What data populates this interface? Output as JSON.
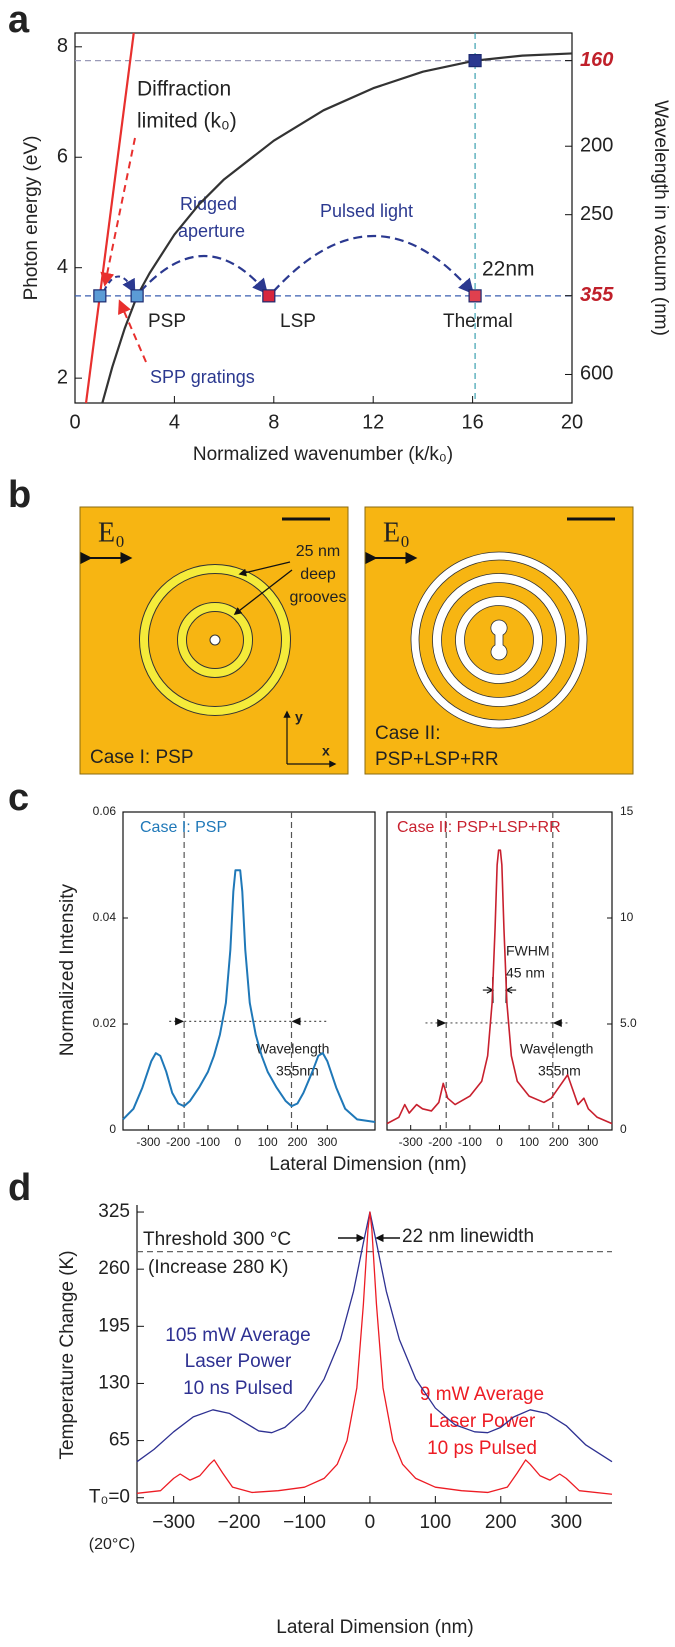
{
  "panel_labels": [
    "a",
    "b",
    "c",
    "d"
  ],
  "chart_data": [
    {
      "type": "line",
      "xlabel": "Normalized wavenumber (k/k₀)",
      "ylabel": "Photon energy (eV)",
      "y2label": "Wavelength in vacuum (nm)",
      "xlim": [
        0,
        20
      ],
      "xticks": [
        0,
        4,
        8,
        12,
        16,
        20
      ],
      "ylim": [
        1.55,
        8.25
      ],
      "yticks": [
        2,
        4,
        6,
        8
      ],
      "y2lim": [
        800,
        150.3
      ],
      "y2scale": "reciprocal",
      "y2ticks": [
        160,
        200,
        250,
        355,
        600
      ],
      "series": [
        {
          "x": [
            0.444,
            2.364
          ],
          "values": [
            1.55,
            8.25
          ],
          "color": "#e8302e"
        },
        {
          "x": [
            1.1,
            1.5,
            2,
            2.5,
            3,
            4,
            5,
            6,
            8,
            10,
            12,
            14,
            16.1,
            18,
            20
          ],
          "values": [
            1.55,
            2.2,
            2.9,
            3.49,
            3.9,
            4.6,
            5.15,
            5.6,
            6.3,
            6.85,
            7.25,
            7.55,
            7.75,
            7.84,
            7.88
          ],
          "color": "#333333"
        }
      ],
      "points": {
        "x": [
          1,
          2.5,
          7.8,
          16.1,
          16.1
        ],
        "values": [
          3.49,
          3.49,
          3.49,
          3.49,
          7.75
        ],
        "colors": [
          "#5b9bd5",
          "#5b9bd5",
          "#d7263d",
          "#e0404e",
          "#2b3990"
        ]
      },
      "hlines": [
        {
          "y": 3.49,
          "color": "#3a5fb0"
        },
        {
          "y": 7.75,
          "color": "#9a9ab8"
        }
      ],
      "vlines": [
        {
          "x": 16.1,
          "color": "#3aa0b0"
        }
      ],
      "annotations": [
        "Diffraction",
        "limited (k₀)",
        "Ridged",
        "aperture",
        "Pulsed light",
        "22nm",
        "PSP",
        "LSP",
        "Thermal",
        "SPP gratings"
      ]
    },
    {
      "type": "line",
      "title": "Case I: PSP",
      "ylabel": "Normalized Intensity",
      "xlim": [
        -385,
        460
      ],
      "xticks": [
        -300,
        -200,
        -100,
        0,
        100,
        200,
        300
      ],
      "ylim": [
        0,
        0.06
      ],
      "yticks": [
        0,
        0.02,
        0.04,
        0.06
      ],
      "series": [
        {
          "x": [
            -385,
            -350,
            -320,
            -290,
            -275,
            -260,
            -240,
            -220,
            -200,
            -180,
            -160,
            -130,
            -100,
            -80,
            -60,
            -40,
            -25,
            -15,
            -8,
            8,
            15,
            25,
            40,
            60,
            80,
            100,
            130,
            160,
            180,
            200,
            220,
            250,
            270,
            285,
            300,
            330,
            360,
            400,
            460
          ],
          "values": [
            0.002,
            0.004,
            0.008,
            0.013,
            0.0145,
            0.014,
            0.011,
            0.007,
            0.005,
            0.0045,
            0.0055,
            0.008,
            0.011,
            0.014,
            0.018,
            0.024,
            0.034,
            0.045,
            0.049,
            0.049,
            0.045,
            0.034,
            0.024,
            0.018,
            0.014,
            0.011,
            0.008,
            0.0055,
            0.0045,
            0.005,
            0.007,
            0.011,
            0.014,
            0.0145,
            0.013,
            0.008,
            0.004,
            0.002,
            0.0015
          ],
          "color": "#1f78b8"
        }
      ],
      "vlines": [
        {
          "x": -180,
          "color": "#555555"
        },
        {
          "x": 180,
          "color": "#555555"
        }
      ],
      "hlines": [
        {
          "y": 0.0205,
          "x": [
            -230,
            300
          ],
          "color": "#555555"
        }
      ],
      "annotations": [
        "Wavelength",
        "355nm"
      ]
    },
    {
      "type": "line",
      "title": "Case II: PSP+LSP+RR",
      "xlim": [
        -380,
        380
      ],
      "xticks": [
        -300,
        -200,
        -100,
        0,
        100,
        200,
        300
      ],
      "y2lim": [
        0,
        15
      ],
      "y2ticks": [
        0,
        {
          "value": 5,
          "label": "5.0"
        },
        10,
        15
      ],
      "series": [
        {
          "axis": "y2",
          "x": [
            -380,
            -340,
            -320,
            -305,
            -280,
            -260,
            -230,
            -205,
            -190,
            -175,
            -150,
            -100,
            -60,
            -40,
            -25,
            -15,
            -8,
            -3,
            3,
            8,
            15,
            25,
            40,
            60,
            100,
            150,
            175,
            200,
            230,
            245,
            265,
            285,
            300,
            330,
            380
          ],
          "values": [
            0.3,
            0.6,
            1.2,
            0.8,
            1.2,
            1.0,
            0.9,
            1.3,
            2.2,
            1.5,
            1.2,
            1.6,
            2.3,
            3.5,
            6,
            9.5,
            12.5,
            13.2,
            13.2,
            12.5,
            9.5,
            6,
            3.5,
            2.3,
            1.6,
            1.3,
            1.5,
            2.0,
            2.6,
            2.0,
            1.2,
            1.5,
            1.0,
            0.6,
            0.3
          ],
          "color": "#c8202e"
        }
      ],
      "vlines": [
        {
          "x": -180,
          "color": "#555555"
        },
        {
          "x": 180,
          "color": "#555555"
        }
      ],
      "hlines": [
        {
          "axis": "y2",
          "y": 5.05,
          "x": [
            -250,
            230
          ],
          "color": "#555555"
        }
      ],
      "fwhm": {
        "axis": "y2",
        "y": 6.6,
        "x": [
          -22.5,
          22.5
        ]
      },
      "annotations": [
        "FWHM",
        "45 nm",
        "Wavelength",
        "355nm"
      ]
    },
    {
      "type": "line",
      "xlabel": "Lateral Dimension (nm)",
      "ylabel": "Temperature Change (K)",
      "xlim": [
        -356,
        370
      ],
      "xticks": [
        {
          "value": -300,
          "label": "−300"
        },
        {
          "value": -200,
          "label": "−200"
        },
        {
          "value": -100,
          "label": "−100"
        },
        0,
        100,
        200,
        300
      ],
      "ylim": [
        -6,
        333
      ],
      "yticks": [
        {
          "value": 0,
          "label": "T₀=0"
        },
        65,
        130,
        195,
        260,
        325
      ],
      "series": [
        {
          "x": [
            -356,
            -330,
            -300,
            -270,
            -240,
            -215,
            -190,
            -170,
            -150,
            -130,
            -100,
            -70,
            -45,
            -25,
            -10,
            0,
            10,
            25,
            45,
            70,
            100,
            130,
            160,
            180,
            200,
            220,
            245,
            270,
            300,
            330,
            370
          ],
          "values": [
            41,
            55,
            75,
            92,
            100,
            96,
            85,
            76,
            74,
            80,
            100,
            135,
            180,
            235,
            290,
            325,
            290,
            235,
            180,
            135,
            102,
            83,
            75,
            74,
            80,
            92,
            100,
            96,
            82,
            60,
            41
          ],
          "color": "#2e3192"
        },
        {
          "x": [
            -356,
            -320,
            -300,
            -290,
            -275,
            -260,
            -245,
            -238,
            -225,
            -210,
            -180,
            -140,
            -100,
            -70,
            -50,
            -35,
            -20,
            -10,
            -3,
            0,
            3,
            10,
            20,
            35,
            50,
            70,
            100,
            140,
            180,
            210,
            225,
            238,
            245,
            260,
            275,
            290,
            300,
            320,
            370
          ],
          "values": [
            5,
            8,
            22,
            27,
            20,
            25,
            38,
            43,
            28,
            12,
            6,
            8,
            12,
            22,
            38,
            65,
            125,
            220,
            305,
            325,
            305,
            220,
            125,
            65,
            38,
            22,
            12,
            8,
            6,
            12,
            28,
            43,
            38,
            25,
            20,
            27,
            22,
            8,
            4
          ],
          "color": "#ed1c24"
        }
      ],
      "hlines": [
        {
          "y": 280,
          "color": "#666666"
        }
      ],
      "annotations": [
        "(20°C)",
        "Threshold 300 °C",
        "(Increase 280 K)",
        "22 nm linewidth",
        "105 mW Average",
        "Laser Power",
        "10 ns Pulsed",
        "9 mW Average",
        "Laser Power",
        "10 ps Pulsed"
      ]
    }
  ],
  "panel_c_xlabel": "Lateral Dimension (nm)",
  "panel_b": {
    "cases": [
      {
        "field": "E₀",
        "annotation": [
          "25 nm",
          "deep",
          "grooves"
        ],
        "caption": [
          "Case I: PSP"
        ]
      },
      {
        "field": "E₀",
        "caption": [
          "Case II:",
          "PSP+LSP+RR"
        ]
      }
    ],
    "axes": [
      "y",
      "x"
    ]
  }
}
